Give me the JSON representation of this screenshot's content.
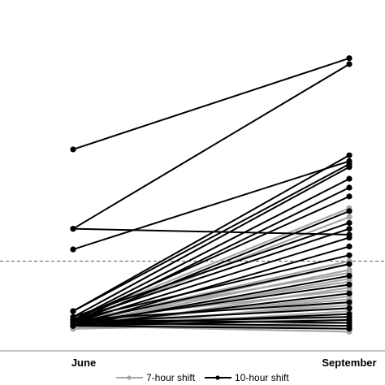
{
  "chart_data": {
    "type": "line",
    "title": "",
    "xlabel": "",
    "ylabel": "",
    "categories": [
      "June",
      "September"
    ],
    "ylim": [
      0,
      100
    ],
    "reference_line": {
      "y": 25,
      "style": "dashed"
    },
    "grid": false,
    "legend_position": "bottom",
    "legend": [
      {
        "name": "7-hour shift",
        "color": "#a6a6a6"
      },
      {
        "name": "10-hour shift",
        "color": "#000000"
      }
    ],
    "series_groups": [
      {
        "name": "7-hour shift",
        "color": "#a6a6a6",
        "pairs": [
          [
            5,
            43
          ],
          [
            4,
            40
          ],
          [
            4,
            25
          ],
          [
            3,
            24
          ],
          [
            3,
            22
          ],
          [
            5,
            21
          ],
          [
            3,
            19
          ],
          [
            4,
            18
          ],
          [
            2,
            16
          ],
          [
            5,
            15
          ],
          [
            3,
            13
          ],
          [
            4,
            12
          ],
          [
            2,
            11
          ],
          [
            3,
            10
          ],
          [
            4,
            9
          ],
          [
            2,
            8
          ],
          [
            3,
            7
          ],
          [
            5,
            6
          ],
          [
            4,
            5
          ],
          [
            2,
            4
          ],
          [
            3,
            3
          ],
          [
            4,
            2
          ],
          [
            3,
            1
          ]
        ]
      },
      {
        "name": "10-hour shift",
        "color": "#000000",
        "pairs": [
          [
            63,
            94
          ],
          [
            36,
            92
          ],
          [
            36,
            34
          ],
          [
            29,
            59
          ],
          [
            8,
            61
          ],
          [
            8,
            58
          ],
          [
            6,
            57
          ],
          [
            5,
            53
          ],
          [
            4,
            50
          ],
          [
            5,
            47
          ],
          [
            4,
            42
          ],
          [
            6,
            38
          ],
          [
            5,
            36
          ],
          [
            4,
            33
          ],
          [
            3,
            30
          ],
          [
            5,
            27
          ],
          [
            4,
            24
          ],
          [
            3,
            20
          ],
          [
            4,
            17
          ],
          [
            3,
            14
          ],
          [
            5,
            11
          ],
          [
            4,
            9
          ],
          [
            3,
            7
          ],
          [
            4,
            6
          ],
          [
            3,
            5
          ],
          [
            5,
            4
          ],
          [
            4,
            3
          ],
          [
            3,
            2
          ]
        ]
      }
    ]
  }
}
